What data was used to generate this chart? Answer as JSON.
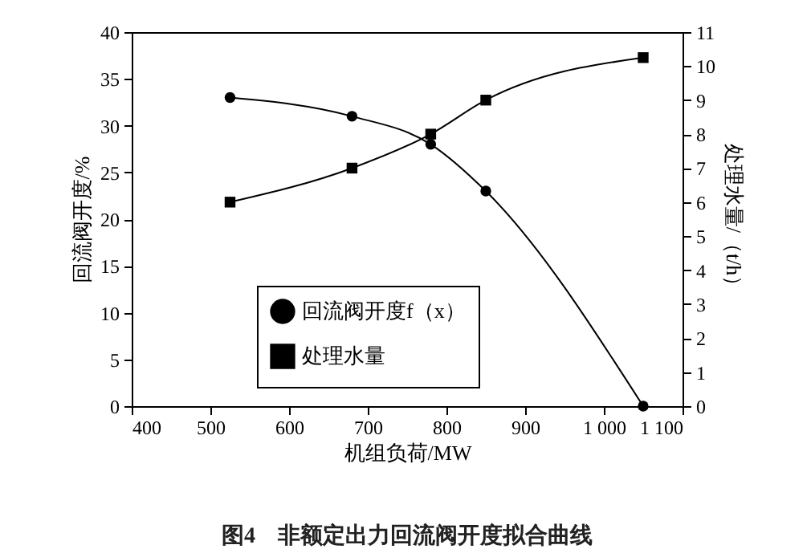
{
  "chart_data": {
    "type": "line",
    "title": "图4　非额定出力回流阀开度拟合曲线",
    "xlabel": "机组负荷/MW",
    "ylabel": "回流阀开度/%",
    "y2label": "处理水量/（t/h）",
    "x": [
      525,
      680,
      780,
      850,
      1050
    ],
    "series": [
      {
        "name": "回流阀开度f（x）",
        "color": "#000000",
        "marker": "circle",
        "values": [
          33,
          31,
          28,
          23,
          0
        ]
      },
      {
        "name": "处理水量",
        "color": "#000000",
        "marker": "square",
        "axis": "y2",
        "values": [
          6,
          7,
          8,
          9,
          10.25
        ]
      }
    ],
    "xlim": [
      400,
      1100
    ],
    "xticks": [
      400,
      500,
      600,
      700,
      800,
      900,
      {
        "value": 1000,
        "label": "1 000"
      },
      {
        "value": 1100,
        "label": "1 100"
      }
    ],
    "ylim": [
      0,
      40
    ],
    "yticks": [
      0,
      5,
      10,
      15,
      20,
      25,
      30,
      35,
      40
    ],
    "y2lim": [
      0,
      11
    ],
    "y2ticks": [
      0,
      1,
      2,
      3,
      4,
      5,
      6,
      7,
      8,
      9,
      10,
      11
    ],
    "grid": false,
    "legend": "bottom left",
    "line_style": "solid"
  }
}
